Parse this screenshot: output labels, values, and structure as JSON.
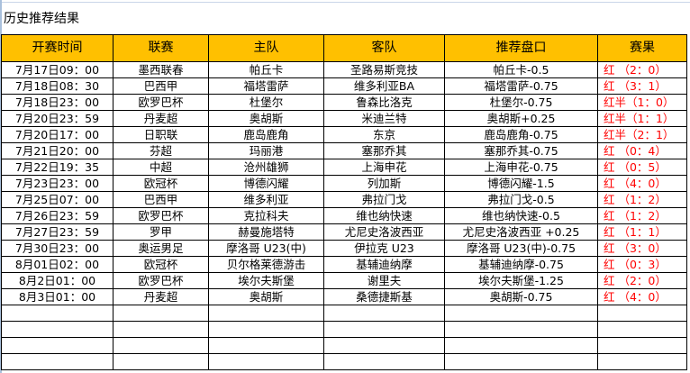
{
  "title": "历史推荐结果",
  "colors": {
    "header_bg": "#FFC000",
    "result": "#FF0000"
  },
  "headers": [
    "开赛时间",
    "联赛",
    "主队",
    "客队",
    "推荐盘口",
    "赛果"
  ],
  "rows": [
    [
      "7月17日09：00",
      "墨西联春",
      "帕丘卡",
      "圣路易斯竞技",
      "帕丘卡-0.5",
      "红 （2：0）"
    ],
    [
      "7月18日08：30",
      "巴西甲",
      "福塔雷萨",
      "维多利亚BA",
      "福塔雷萨-0.75",
      "红 （3：1）"
    ],
    [
      "7月18日23：00",
      "欧罗巴杯",
      "杜堡尔",
      "鲁森比洛克",
      "杜堡尔-0.75",
      "红半（1：0）"
    ],
    [
      "7月20日23：59",
      "丹麦超",
      "奥胡斯",
      "米迪兰特",
      "奥胡斯+0.25",
      "红半（1：1）"
    ],
    [
      "7月20日17：00",
      "日职联",
      "鹿岛鹿角",
      "东京",
      "鹿岛鹿角-0.75",
      "红半（2：1）"
    ],
    [
      "7月21日20：00",
      "芬超",
      "玛丽港",
      "塞那乔其",
      "塞那乔其-0.75",
      "红  （0：4）"
    ],
    [
      "7月22日19：35",
      "中超",
      "沧州雄狮",
      "上海申花",
      "上海申花-0.75",
      "红  （0：5）"
    ],
    [
      "7月23日23：00",
      "欧冠杯",
      "博德闪耀",
      "列加斯",
      "博德闪耀-1.5",
      "红  （4：0）"
    ],
    [
      "7月25日07：00",
      "巴西甲",
      "维多利亚",
      "弗拉门戈",
      "弗拉门戈-0.5",
      "红  （1：2）"
    ],
    [
      "7月26日23：59",
      "欧罗巴杯",
      "克拉科夫",
      "维也纳快速",
      "维也纳快速-0.5",
      "红  （1：2）"
    ],
    [
      "7月27日23：59",
      "罗甲",
      "赫曼施塔特",
      "尤尼史洛波西亚",
      "尤尼史洛波西亚 +0.25",
      "红  （1：1）"
    ],
    [
      "7月30日23：00",
      "奥运男足",
      "摩洛哥 U23(中)",
      "伊拉克 U23",
      "摩洛哥 U23(中)-0.75",
      "红  （3：0）"
    ],
    [
      "8月01日02：00",
      "欧冠杯",
      "贝尔格莱德游击",
      "基辅迪纳摩",
      "基辅迪纳摩-0.75",
      "红  （0：3）"
    ],
    [
      "8月2日01：00",
      "欧罗巴杯",
      "埃尔夫斯堡",
      "谢里夫",
      "埃尔夫斯堡-1.25",
      "红  （2：0）"
    ],
    [
      "8月3日01：00",
      "丹麦超",
      "奥胡斯",
      "桑德捷斯基",
      "奥胡斯-0.75",
      "红  （4：0）"
    ]
  ]
}
